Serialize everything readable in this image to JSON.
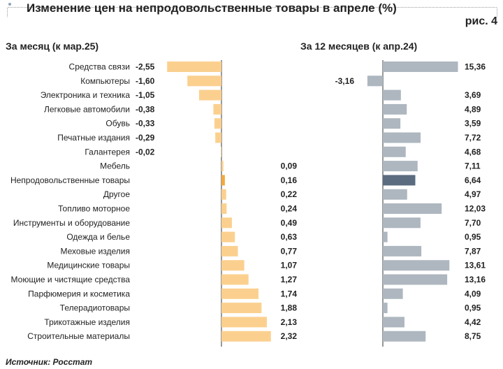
{
  "header": {
    "title": "Изменение цен на непродовольственные товары в апреле (%)",
    "figure_label": "рис. 4"
  },
  "chart_data": [
    {
      "type": "bar",
      "orientation": "horizontal",
      "title": "За месяц (к мар.25)",
      "categories": [
        "Средства связи",
        "Компьютеры",
        "Электроника и техника",
        "Легковые автомобили",
        "Обувь",
        "Печатные издания",
        "Галантерея",
        "Мебель",
        "Непродовольственные товары",
        "Другое",
        "Топливо моторное",
        "Инструменты и оборудование",
        "Одежда и белье",
        "Меховые изделия",
        "Медицинские товары",
        "Моющие и чистящие средства",
        "Парфюмерия и косметика",
        "Телерадиотовары",
        "Трикотажные изделия",
        "Строительные материалы"
      ],
      "values": [
        -2.55,
        -1.6,
        -1.05,
        -0.38,
        -0.33,
        -0.29,
        -0.02,
        0.09,
        0.16,
        0.22,
        0.24,
        0.49,
        0.63,
        0.77,
        1.07,
        1.27,
        1.74,
        1.88,
        2.13,
        2.32
      ],
      "value_labels": [
        "-2,55",
        "-1,60",
        "-1,05",
        "-0,38",
        "-0,33",
        "-0,29",
        "-0,02",
        "0,09",
        "0,16",
        "0,22",
        "0,24",
        "0,49",
        "0,63",
        "0,77",
        "1,07",
        "1,27",
        "1,74",
        "1,88",
        "2,13",
        "2,32"
      ],
      "highlight_category": "Непродовольственные товары",
      "xlim": [
        -3.0,
        2.4
      ],
      "colors": {
        "bar": "#fbd08f",
        "highlight": "#f4a93a",
        "axis": "#333333"
      }
    },
    {
      "type": "bar",
      "orientation": "horizontal",
      "title": "За 12 месяцев (к апр.24)",
      "categories": [
        "Средства связи",
        "Компьютеры",
        "Электроника и техника",
        "Легковые автомобили",
        "Обувь",
        "Печатные издания",
        "Галантерея",
        "Мебель",
        "Непродовольственные товары",
        "Другое",
        "Топливо моторное",
        "Инструменты и оборудование",
        "Одежда и белье",
        "Меховые изделия",
        "Медицинские товары",
        "Моющие и чистящие средства",
        "Парфюмерия и косметика",
        "Телерадиотовары",
        "Трикотажные изделия",
        "Строительные материалы"
      ],
      "values": [
        15.36,
        -3.16,
        3.69,
        4.89,
        3.59,
        7.72,
        4.68,
        7.11,
        6.64,
        4.97,
        12.03,
        7.7,
        0.95,
        7.87,
        13.61,
        13.16,
        4.09,
        0.95,
        4.42,
        8.75
      ],
      "value_labels": [
        "15,36",
        "-3,16",
        "3,69",
        "4,89",
        "3,59",
        "7,72",
        "4,68",
        "7,11",
        "6,64",
        "4,97",
        "12,03",
        "7,70",
        "0,95",
        "7,87",
        "13,61",
        "13,16",
        "4,09",
        "0,95",
        "4,42",
        "8,75"
      ],
      "highlight_category": "Непродовольственные товары",
      "xlim": [
        -4.0,
        16.0
      ],
      "colors": {
        "bar": "#aeb7bf",
        "highlight": "#5b6c80",
        "axis": "#333333"
      }
    }
  ],
  "source": "Источник: Росстат"
}
